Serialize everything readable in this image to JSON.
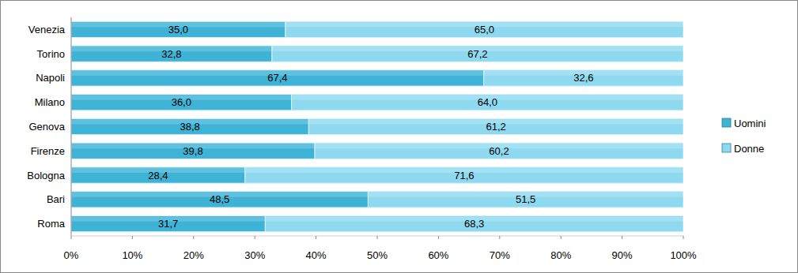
{
  "chart_data": {
    "type": "bar",
    "orientation": "horizontal",
    "stacked": true,
    "data_labels": true,
    "grid": false,
    "legend": "right",
    "categories": [
      "Venezia",
      "Torino",
      "Napoli",
      "Milano",
      "Genova",
      "Firenze",
      "Bologna",
      "Bari",
      "Roma"
    ],
    "series": [
      {
        "name": "Uomini",
        "color": "#3fb3d6",
        "values": [
          35.0,
          32.8,
          67.4,
          36.0,
          38.8,
          39.8,
          28.4,
          48.5,
          31.7
        ],
        "value_labels": [
          "35,0",
          "32,8",
          "67,4",
          "36,0",
          "38,8",
          "39,8",
          "28,4",
          "48,5",
          "31,7"
        ]
      },
      {
        "name": "Donne",
        "color": "#8ed9f0",
        "values": [
          65.0,
          67.2,
          32.6,
          64.0,
          61.2,
          60.2,
          71.6,
          51.5,
          68.3
        ],
        "value_labels": [
          "65,0",
          "67,2",
          "32,6",
          "64,0",
          "61,2",
          "60,2",
          "71,6",
          "51,5",
          "68,3"
        ]
      }
    ],
    "xlim": [
      0,
      100
    ],
    "xticks": [
      {
        "value": 0,
        "label": "0%"
      },
      {
        "value": 10,
        "label": "10%"
      },
      {
        "value": 20,
        "label": "20%"
      },
      {
        "value": 30,
        "label": "30%"
      },
      {
        "value": 40,
        "label": "40%"
      },
      {
        "value": 50,
        "label": "50%"
      },
      {
        "value": 60,
        "label": "60%"
      },
      {
        "value": 70,
        "label": "70%"
      },
      {
        "value": 80,
        "label": "80%"
      },
      {
        "value": 90,
        "label": "90%"
      },
      {
        "value": 100,
        "label": "100%"
      }
    ]
  }
}
